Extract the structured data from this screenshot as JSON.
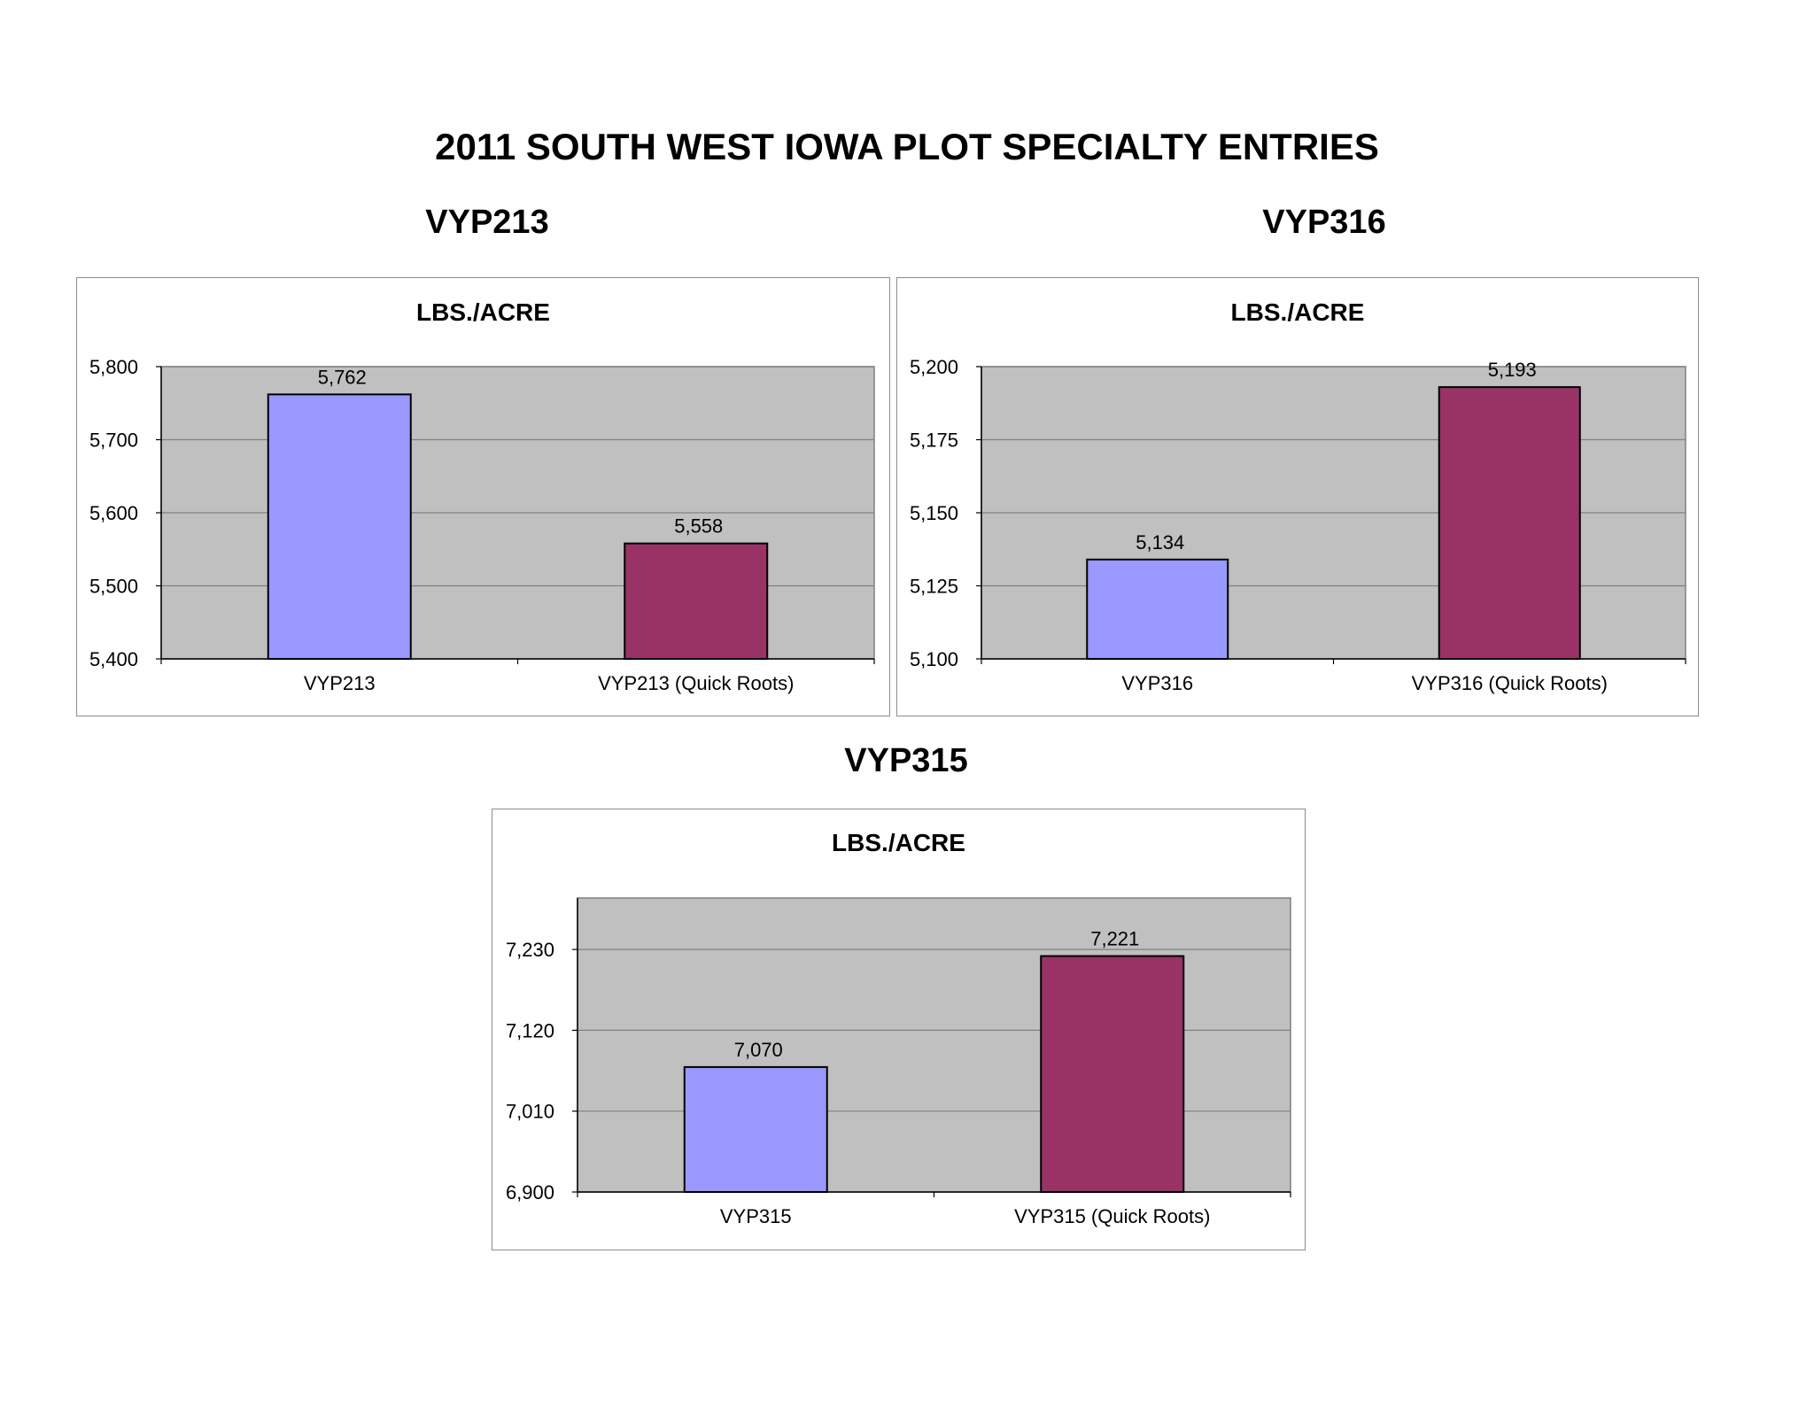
{
  "page": {
    "title": "2011 SOUTH WEST IOWA PLOT SPECIALTY ENTRIES"
  },
  "colors": {
    "bar_standard": "#9999ff",
    "bar_quick_roots": "#993366",
    "plot_area": "#c0c0c0",
    "gridline": "#808080"
  },
  "chart_data": [
    {
      "type": "bar",
      "heading": "VYP213",
      "title": "LBS./ACRE",
      "categories": [
        "VYP213",
        "VYP213 (Quick Roots)"
      ],
      "values": [
        5762,
        5558
      ],
      "value_labels": [
        "5,762",
        "5,558"
      ],
      "ylim": [
        5400,
        5800
      ],
      "yticks": [
        5400,
        5500,
        5600,
        5700,
        5800
      ],
      "ytick_labels": [
        "5,400",
        "5,500",
        "5,600",
        "5,700",
        "5,800"
      ],
      "grid": true,
      "legend": "none"
    },
    {
      "type": "bar",
      "heading": "VYP316",
      "title": "LBS./ACRE",
      "categories": [
        "VYP316",
        "VYP316 (Quick Roots)"
      ],
      "values": [
        5134,
        5193
      ],
      "value_labels": [
        "5,134",
        "5,193"
      ],
      "ylim": [
        5100,
        5200
      ],
      "yticks": [
        5100,
        5125,
        5150,
        5175,
        5200
      ],
      "ytick_labels": [
        "5,100",
        "5,125",
        "5,150",
        "5,175",
        "5,200"
      ],
      "grid": true,
      "legend": "none"
    },
    {
      "type": "bar",
      "heading": "VYP315",
      "title": "LBS./ACRE",
      "categories": [
        "VYP315",
        "VYP315 (Quick Roots)"
      ],
      "values": [
        7070,
        7221
      ],
      "value_labels": [
        "7,070",
        "7,221"
      ],
      "ylim": [
        6900,
        7300
      ],
      "yticks": [
        6900,
        7010,
        7120,
        7230
      ],
      "ytick_labels": [
        "6,900",
        "7,010",
        "7,120",
        "7,230"
      ],
      "grid": true,
      "legend": "none"
    }
  ]
}
